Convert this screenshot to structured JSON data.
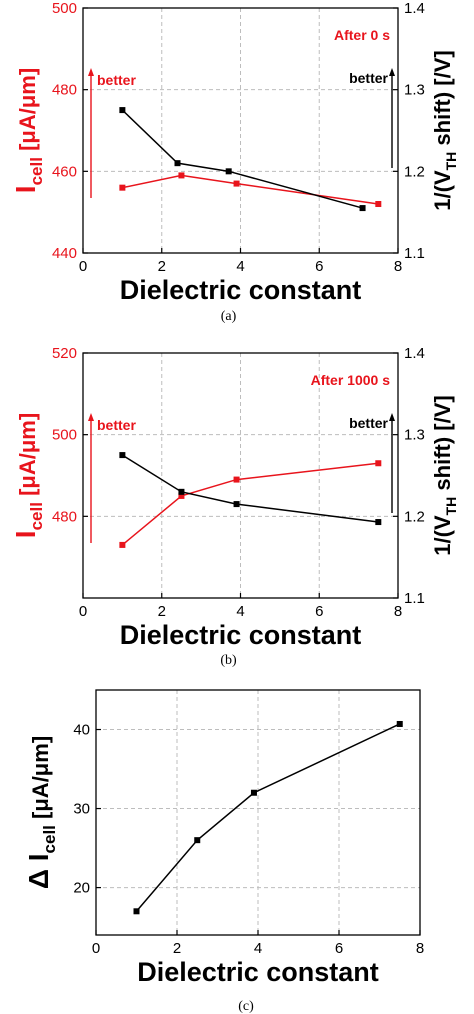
{
  "colors": {
    "red": "#e8141c",
    "black": "#000000",
    "grid": "#bdbdbd"
  },
  "chart_data": [
    {
      "type": "line",
      "caption": "(a)",
      "annotation": "After 0 s",
      "xlabel": "Dielectric constant",
      "left_axis": {
        "label_main": "I",
        "label_sub": "cell",
        "label_unit": " [μA/μm]",
        "ylim": [
          440,
          500
        ],
        "ticks": [
          "440",
          "460",
          "480",
          "500"
        ],
        "color": "#e8141c",
        "better": "better"
      },
      "right_axis": {
        "label_pre": "1/(V",
        "label_sub": "TH",
        "label_post": " shift) [/V]",
        "ylim": [
          1.1,
          1.4
        ],
        "ticks": [
          "1.1",
          "1.2",
          "1.3",
          "1.4"
        ],
        "color": "#000000",
        "better": "better"
      },
      "xlim": [
        0,
        8
      ],
      "xticks": [
        "0",
        "2",
        "4",
        "6",
        "8"
      ],
      "grid": true,
      "series": [
        {
          "axis": "left",
          "color": "#e8141c",
          "x": [
            1.0,
            2.5,
            3.9,
            7.5
          ],
          "y": [
            456,
            459,
            457,
            452
          ]
        },
        {
          "axis": "right",
          "color": "#000000",
          "x": [
            1.0,
            2.4,
            3.7,
            7.1
          ],
          "y": [
            1.275,
            1.21,
            1.2,
            1.155
          ]
        }
      ]
    },
    {
      "type": "line",
      "caption": "(b)",
      "annotation": "After 1000 s",
      "xlabel": "Dielectric constant",
      "left_axis": {
        "label_main": "I",
        "label_sub": "cell",
        "label_unit": " [μA/μm]",
        "ylim": [
          460,
          520
        ],
        "ticks": [
          "480",
          "500",
          "520"
        ],
        "color": "#e8141c",
        "better": "better"
      },
      "right_axis": {
        "label_pre": "1/(V",
        "label_sub": "TH",
        "label_post": " shift) [/V]",
        "ylim": [
          1.1,
          1.4
        ],
        "ticks": [
          "1.1",
          "1.2",
          "1.3",
          "1.4"
        ],
        "color": "#000000",
        "better": "better"
      },
      "xlim": [
        0,
        8
      ],
      "xticks": [
        "0",
        "2",
        "4",
        "6",
        "8"
      ],
      "grid": true,
      "series": [
        {
          "axis": "left",
          "color": "#e8141c",
          "x": [
            1.0,
            2.5,
            3.9,
            7.5
          ],
          "y": [
            473,
            485,
            489,
            493
          ]
        },
        {
          "axis": "right",
          "color": "#000000",
          "x": [
            1.0,
            2.5,
            3.9,
            7.5
          ],
          "y": [
            1.275,
            1.23,
            1.215,
            1.193
          ]
        }
      ]
    },
    {
      "type": "line",
      "caption": "(c)",
      "xlabel": "Dielectric constant",
      "left_axis": {
        "label_main": "Δ I",
        "label_sub": "cell",
        "label_unit": " [μA/μm]",
        "ylim": [
          14,
          45
        ],
        "ticks": [
          "20",
          "30",
          "40"
        ],
        "color": "#000000"
      },
      "xlim": [
        0,
        8
      ],
      "xticks": [
        "0",
        "2",
        "4",
        "6",
        "8"
      ],
      "grid": true,
      "series": [
        {
          "axis": "left",
          "color": "#000000",
          "x": [
            1.0,
            2.5,
            3.9,
            7.5
          ],
          "y": [
            17,
            26,
            32,
            40.7
          ]
        }
      ]
    }
  ]
}
